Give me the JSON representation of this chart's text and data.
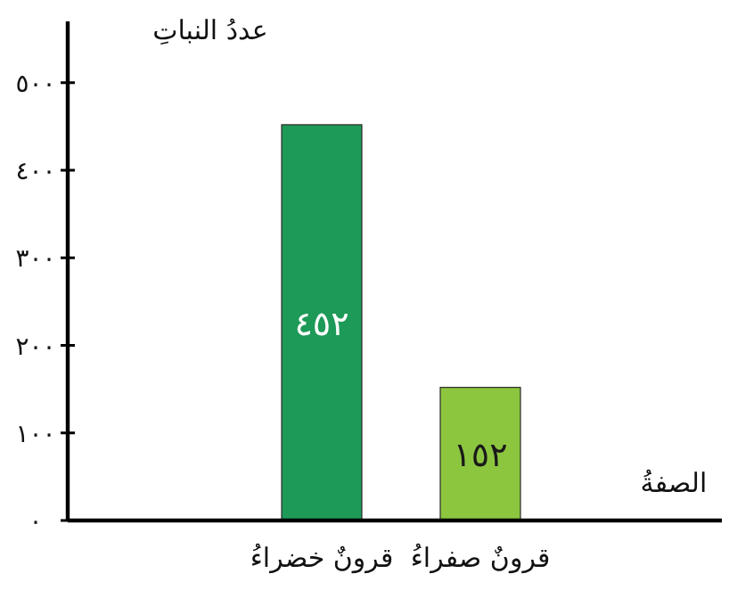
{
  "chart_data": {
    "type": "bar",
    "ylabel": "عددُ النباتِ",
    "xlabel": "الصفةُ",
    "categories": [
      "قرونٌ خضراءُ",
      "قرونٌ صفراءُ"
    ],
    "values": [
      452,
      152
    ],
    "colors": [
      "#1e9a58",
      "#8cc63f"
    ],
    "value_labels": [
      "٤٥٢",
      "١٥٢"
    ],
    "ylim": [
      0,
      570
    ],
    "yticks": [
      {
        "value": 0,
        "label": "٠"
      },
      {
        "value": 100,
        "label": "١٠٠"
      },
      {
        "value": 200,
        "label": "٢٠٠"
      },
      {
        "value": 300,
        "label": "٣٠٠"
      },
      {
        "value": 400,
        "label": "٤٠٠"
      },
      {
        "value": 500,
        "label": "٥٠٠"
      }
    ],
    "grid": false
  }
}
